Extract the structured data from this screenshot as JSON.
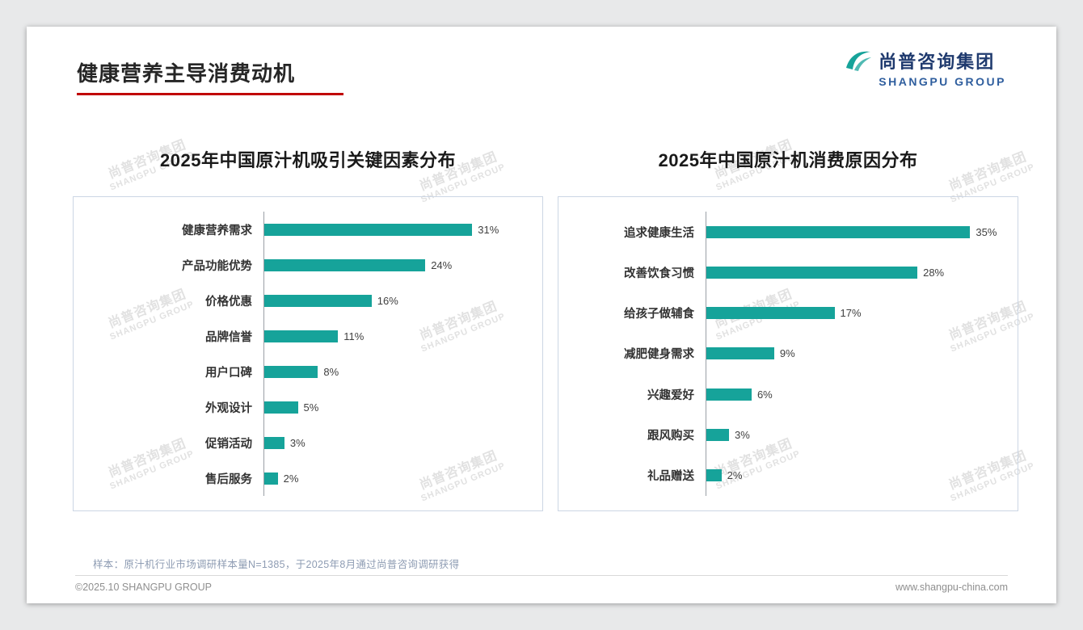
{
  "page": {
    "title": "健康营养主导消费动机",
    "accent_color": "#c00000",
    "bar_color": "#16a39a"
  },
  "logo": {
    "cn": "尚普咨询集团",
    "en": "SHANGPU GROUP"
  },
  "watermark": {
    "cn": "尚普咨询集团",
    "en": "SHANGPU GROUP"
  },
  "footnote": "样本：原汁机行业市场调研样本量N=1385，于2025年8月通过尚普咨询调研获得",
  "footer": {
    "left": "©2025.10 SHANGPU GROUP",
    "right": "www.shangpu-china.com"
  },
  "chart_data": [
    {
      "type": "bar",
      "orientation": "horizontal",
      "title": "2025年中国原汁机吸引关键因素分布",
      "categories": [
        "健康营养需求",
        "产品功能优势",
        "价格优惠",
        "品牌信誉",
        "用户口碑",
        "外观设计",
        "促销活动",
        "售后服务"
      ],
      "values": [
        31,
        24,
        16,
        11,
        8,
        5,
        3,
        2
      ],
      "unit": "%",
      "bar_color": "#16a39a",
      "xlim": [
        0,
        40
      ],
      "grid": false,
      "legend": "none"
    },
    {
      "type": "bar",
      "orientation": "horizontal",
      "title": "2025年中国原汁机消费原因分布",
      "categories": [
        "追求健康生活",
        "改善饮食习惯",
        "给孩子做辅食",
        "减肥健身需求",
        "兴趣爱好",
        "跟风购买",
        "礼品赠送"
      ],
      "values": [
        35,
        28,
        17,
        9,
        6,
        3,
        2
      ],
      "unit": "%",
      "bar_color": "#16a39a",
      "xlim": [
        0,
        40
      ],
      "grid": false,
      "legend": "none"
    }
  ]
}
